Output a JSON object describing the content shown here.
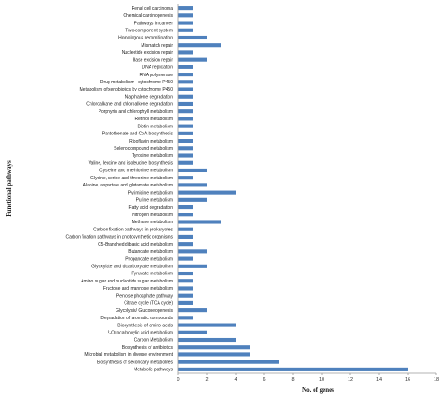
{
  "chart_data": {
    "type": "bar",
    "orientation": "horizontal",
    "xlabel": "No. of genes",
    "ylabel": "Functional pathways",
    "xlim": [
      0,
      18
    ],
    "xticks": [
      "0",
      "2",
      "4",
      "6",
      "8",
      "10",
      "12",
      "14",
      "16",
      "18"
    ],
    "grid": false,
    "legend": "none",
    "bar_color": "#4f81bd",
    "categories": [
      "Renal cell carcinoma",
      "Chemical carcinogenesis",
      "Pathways in cancer",
      "Two-component system",
      "Homologous recombination",
      "Mismatch repair",
      "Nucleotide excision repair",
      "Base excision repair",
      "DNA replication",
      "RNA polymerase",
      "Drug metabolism - cytochrome P450",
      "Metabolism of xenobiotics by cytochrome P450",
      "Napthalene degradation",
      "Chloroalkane and chloroalkene degradation",
      "Porphyrin and chlorophyll metabolism",
      "Retinol metabolism",
      "Biotin metabolism",
      "Pantothenate and CoA biosynthesis",
      "Riboflavin metabolism",
      "Selenocompound metabolism",
      "Tyrosine metabolism",
      "Valine, leucine and isoleucine biosynthesis",
      "Cysteine and methionine metabolism",
      "Glycine, serine and threonine metabolism",
      "Alanine, aspartate and glutamate metabolism",
      "Pyrimidine metabolism",
      "Purine metabolism",
      "Fatty acid degradation",
      "Nitrogen metabolism",
      "Methane metabolism",
      "Carbon fixation pathways in prokaryotes",
      "Carbon fixation pathways in photosynthetic organisms",
      "C5-Branched dibasic acid metabolism",
      "Butanoate metabolism",
      "Propanoate metabolism",
      "Glyoxylate and dicarboxylate metabolism",
      "Pyruvate metabolism",
      "Amino sugar and nucleotide sugar metabolism",
      "Fructose and mannose metabolism",
      "Pentose phosphate pathway",
      "Citrate cycle (TCA cycle)",
      "Glycolysis/ Gluconeogenesis",
      "Degradation of aromatic compounds",
      "Biosynthesis of amino acids",
      "2-Oxocarboxylic acid metabolism",
      "Carbon Metabolism",
      "Biosynthesis of antibiotics",
      "Microbial metabolism in diverse environment",
      "Biosynthesis of secondary metabolites",
      "Metabolic pathways"
    ],
    "values": [
      1,
      1,
      1,
      1,
      2,
      3,
      1,
      2,
      1,
      1,
      1,
      1,
      1,
      1,
      1,
      1,
      1,
      1,
      1,
      1,
      1,
      1,
      2,
      1,
      2,
      4,
      2,
      1,
      1,
      3,
      1,
      1,
      1,
      2,
      1,
      2,
      1,
      1,
      1,
      1,
      1,
      2,
      1,
      4,
      2,
      4,
      5,
      5,
      7,
      16
    ]
  }
}
